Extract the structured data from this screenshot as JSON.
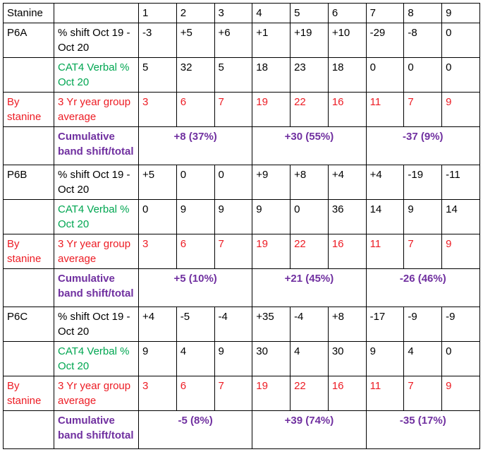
{
  "header": {
    "label": "Stanine",
    "stanines": [
      "1",
      "2",
      "3",
      "4",
      "5",
      "6",
      "7",
      "8",
      "9"
    ]
  },
  "groups": [
    {
      "name": "P6A",
      "shift_label": "% shift Oct 19 - Oct 20",
      "shift_values": [
        "-3",
        "+5",
        "+6",
        "+1",
        "+19",
        "+10",
        "-29",
        "-8",
        "0"
      ],
      "cat4_label": "CAT4 Verbal % Oct 20",
      "cat4_values": [
        "5",
        "32",
        "5",
        "18",
        "23",
        "18",
        "0",
        "0",
        "0"
      ],
      "by_stanine_label": "By stanine",
      "avg_label": "3 Yr year group average",
      "avg_values": [
        "3",
        "6",
        "7",
        "19",
        "22",
        "16",
        "11",
        "7",
        "9"
      ],
      "cumulative_label": "Cumulative band shift/total",
      "cumulative_values": [
        "+8 (37%)",
        "+30 (55%)",
        "-37 (9%)"
      ]
    },
    {
      "name": "P6B",
      "shift_label": "% shift Oct 19 - Oct 20",
      "shift_values": [
        "+5",
        "0",
        "0",
        "+9",
        "+8",
        "+4",
        "+4",
        "-19",
        "-11"
      ],
      "cat4_label": "CAT4 Verbal % Oct 20",
      "cat4_values": [
        "0",
        "9",
        "9",
        "9",
        "0",
        "36",
        "14",
        "9",
        "14"
      ],
      "by_stanine_label": "By stanine",
      "avg_label": "3 Yr year group average",
      "avg_values": [
        "3",
        "6",
        "7",
        "19",
        "22",
        "16",
        "11",
        "7",
        "9"
      ],
      "cumulative_label": "Cumulative band shift/total",
      "cumulative_values": [
        "+5 (10%)",
        "+21 (45%)",
        "-26 (46%)"
      ]
    },
    {
      "name": "P6C",
      "shift_label": "% shift Oct 19 - Oct 20",
      "shift_values": [
        "+4",
        "-5",
        "-4",
        "+35",
        "-4",
        "+8",
        "-17",
        "-9",
        "-9"
      ],
      "cat4_label": "CAT4 Verbal % Oct 20",
      "cat4_values": [
        "9",
        "4",
        "9",
        "30",
        "4",
        "30",
        "9",
        "4",
        "0"
      ],
      "by_stanine_label": "By stanine",
      "avg_label": "3 Yr year group average",
      "avg_values": [
        "3",
        "6",
        "7",
        "19",
        "22",
        "16",
        "11",
        "7",
        "9"
      ],
      "cumulative_label": "Cumulative band shift/total",
      "cumulative_values": [
        "-5 (8%)",
        "+39 (74%)",
        "-35 (17%)"
      ]
    }
  ],
  "colors": {
    "cat4_green": "#00a651",
    "stanine_red": "#ed1c24",
    "cumulative_purple": "#7030a0",
    "text_black": "#000000",
    "border_black": "#000000"
  }
}
